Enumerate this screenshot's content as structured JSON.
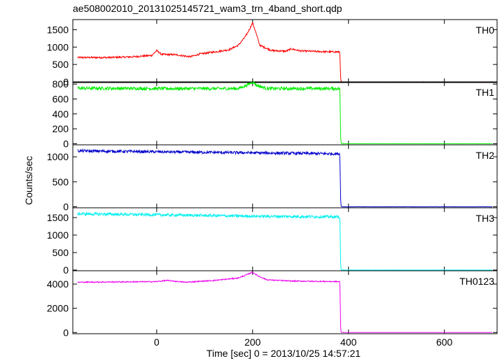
{
  "title": "ae508002010_20131025145721_wam3_trn_4band_short.qdp",
  "xlabel": "Time [sec] 0 = 2013/10/25 14:57:21",
  "ylabel": "Counts/sec",
  "chart_data": {
    "type": "line",
    "shared_x_axis": true,
    "xlim": [
      -175,
      710
    ],
    "x_ticks": [
      0,
      200,
      400,
      600
    ],
    "x_tick_labels": [
      "0",
      "200",
      "400",
      "600"
    ],
    "grid": false,
    "panels": [
      {
        "name": "TH0",
        "color": "#ff0000",
        "ylim": [
          -20,
          1790
        ],
        "y_ticks": [
          0,
          500,
          1000,
          1500
        ],
        "y_tick_labels": [
          "0",
          "500",
          "1000",
          "1500"
        ],
        "noise": 25,
        "points": [
          [
            -175,
            700
          ],
          [
            -100,
            700
          ],
          [
            -50,
            720
          ],
          [
            -10,
            760
          ],
          [
            0,
            900
          ],
          [
            10,
            790
          ],
          [
            40,
            780
          ],
          [
            70,
            720
          ],
          [
            90,
            800
          ],
          [
            120,
            860
          ],
          [
            150,
            920
          ],
          [
            170,
            1050
          ],
          [
            185,
            1300
          ],
          [
            195,
            1550
          ],
          [
            200,
            1700
          ],
          [
            205,
            1500
          ],
          [
            215,
            1050
          ],
          [
            240,
            900
          ],
          [
            270,
            880
          ],
          [
            280,
            950
          ],
          [
            300,
            890
          ],
          [
            340,
            870
          ],
          [
            382,
            860
          ],
          [
            384,
            30
          ],
          [
            386,
            0
          ],
          [
            710,
            0
          ]
        ]
      },
      {
        "name": "TH1",
        "color": "#00ee00",
        "ylim": [
          -15,
          830
        ],
        "y_ticks": [
          0,
          200,
          400,
          600,
          800
        ],
        "y_tick_labels": [
          "0",
          "200",
          "400",
          "600",
          "800"
        ],
        "noise": 22,
        "points": [
          [
            -175,
            745
          ],
          [
            0,
            740
          ],
          [
            170,
            740
          ],
          [
            190,
            790
          ],
          [
            200,
            830
          ],
          [
            210,
            780
          ],
          [
            230,
            740
          ],
          [
            382,
            740
          ],
          [
            384,
            20
          ],
          [
            386,
            0
          ],
          [
            710,
            0
          ]
        ]
      },
      {
        "name": "TH2",
        "color": "#0000cc",
        "ylim": [
          -20,
          1240
        ],
        "y_ticks": [
          0,
          500,
          1000
        ],
        "y_tick_labels": [
          "0",
          "500",
          "1000"
        ],
        "noise": 28,
        "points": [
          [
            -175,
            1120
          ],
          [
            0,
            1100
          ],
          [
            200,
            1080
          ],
          [
            382,
            1060
          ],
          [
            384,
            30
          ],
          [
            386,
            0
          ],
          [
            710,
            0
          ]
        ]
      },
      {
        "name": "TH3",
        "color": "#00f0f0",
        "ylim": [
          -20,
          1780
        ],
        "y_ticks": [
          0,
          500,
          1000,
          1500
        ],
        "y_tick_labels": [
          "0",
          "500",
          "1000",
          "1500"
        ],
        "noise": 40,
        "points": [
          [
            -175,
            1610
          ],
          [
            0,
            1580
          ],
          [
            200,
            1540
          ],
          [
            382,
            1520
          ],
          [
            384,
            30
          ],
          [
            386,
            0
          ],
          [
            710,
            0
          ]
        ]
      },
      {
        "name": "TH0123",
        "color": "#ee00ee",
        "ylim": [
          -100,
          5100
        ],
        "y_ticks": [
          0,
          2000,
          4000
        ],
        "y_tick_labels": [
          "0",
          "2000",
          "4000"
        ],
        "noise": 45,
        "points": [
          [
            -175,
            4150
          ],
          [
            0,
            4200
          ],
          [
            20,
            4300
          ],
          [
            60,
            4150
          ],
          [
            120,
            4300
          ],
          [
            170,
            4500
          ],
          [
            190,
            4800
          ],
          [
            200,
            5000
          ],
          [
            210,
            4700
          ],
          [
            230,
            4350
          ],
          [
            280,
            4250
          ],
          [
            382,
            4200
          ],
          [
            384,
            60
          ],
          [
            386,
            0
          ],
          [
            710,
            0
          ]
        ]
      }
    ]
  }
}
